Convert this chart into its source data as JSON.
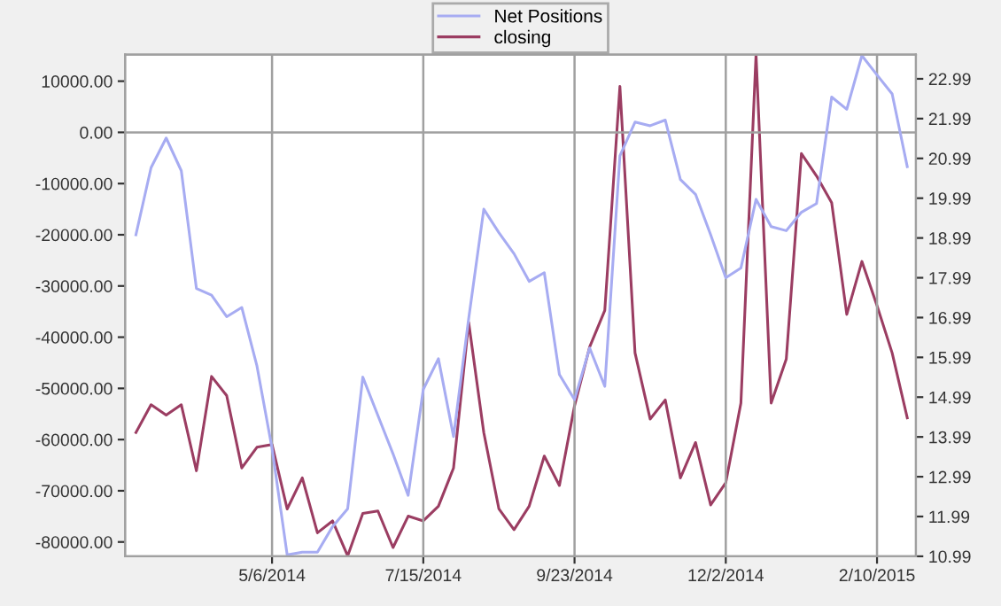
{
  "chart_data": {
    "type": "line",
    "x": [
      "2014-03-04",
      "2014-03-11",
      "2014-03-18",
      "2014-03-25",
      "2014-04-01",
      "2014-04-08",
      "2014-04-15",
      "2014-04-22",
      "2014-04-29",
      "2014-05-06",
      "2014-05-13",
      "2014-05-20",
      "2014-05-27",
      "2014-06-03",
      "2014-06-10",
      "2014-06-17",
      "2014-06-24",
      "2014-07-01",
      "2014-07-08",
      "2014-07-15",
      "2014-07-22",
      "2014-07-29",
      "2014-08-05",
      "2014-08-12",
      "2014-08-19",
      "2014-08-26",
      "2014-09-02",
      "2014-09-09",
      "2014-09-16",
      "2014-09-23",
      "2014-09-30",
      "2014-10-07",
      "2014-10-14",
      "2014-10-21",
      "2014-10-28",
      "2014-11-04",
      "2014-11-11",
      "2014-11-18",
      "2014-11-25",
      "2014-12-02",
      "2014-12-09",
      "2014-12-16",
      "2014-12-23",
      "2014-12-30",
      "2015-01-06",
      "2015-01-13",
      "2015-01-20",
      "2015-01-27",
      "2015-02-03",
      "2015-02-10",
      "2015-02-17",
      "2015-02-24"
    ],
    "series": [
      {
        "name": "Net Positions",
        "color": "#a7acf2",
        "values": [
          -20000,
          -6900,
          -1100,
          -7500,
          -30500,
          -31800,
          -36000,
          -34200,
          -45600,
          -61700,
          -82500,
          -82000,
          -82000,
          -77000,
          -73500,
          -47800,
          -55300,
          -62800,
          -70900,
          -50200,
          -44200,
          -59400,
          -36400,
          -15000,
          -19600,
          -23700,
          -29100,
          -27400,
          -47300,
          -52200,
          -42100,
          -49600,
          -4600,
          2000,
          1300,
          2400,
          -9200,
          -12100,
          -20000,
          -28400,
          -26500,
          -13100,
          -18400,
          -19200,
          -15600,
          -13900,
          6900,
          4500,
          15000,
          11200,
          7500,
          -6700
        ]
      },
      {
        "name": "closing",
        "color": "#9b3d62",
        "axis": "y2",
        "values": [
          14.1,
          14.8,
          14.54,
          14.8,
          13.14,
          15.51,
          15.03,
          13.21,
          13.73,
          13.8,
          12.18,
          12.96,
          11.58,
          11.88,
          11.0,
          12.07,
          12.13,
          11.21,
          12.0,
          11.88,
          12.25,
          13.21,
          16.87,
          14.1,
          12.18,
          11.66,
          12.25,
          13.51,
          12.77,
          14.77,
          16.25,
          17.17,
          22.8,
          16.1,
          14.44,
          14.92,
          12.96,
          13.85,
          12.28,
          12.84,
          14.84,
          23.6,
          14.84,
          15.95,
          21.11,
          20.55,
          19.88,
          17.07,
          18.4,
          17.29,
          16.1,
          14.47
        ]
      }
    ],
    "xlim": [
      "2014-02-27",
      "2015-02-28"
    ],
    "xticks": [
      {
        "value": "2014-05-06",
        "label": "5/6/2014"
      },
      {
        "value": "2014-07-15",
        "label": "7/15/2014"
      },
      {
        "value": "2014-09-23",
        "label": "9/23/2014"
      },
      {
        "value": "2014-12-02",
        "label": "12/2/2014"
      },
      {
        "value": "2015-02-10",
        "label": "2/10/2015"
      }
    ],
    "ylim": [
      -82800,
      15200
    ],
    "yticks": [
      {
        "value": -80000,
        "label": "-80000.00"
      },
      {
        "value": -70000,
        "label": "-70000.00"
      },
      {
        "value": -60000,
        "label": "-60000.00"
      },
      {
        "value": -50000,
        "label": "-50000.00"
      },
      {
        "value": -40000,
        "label": "-40000.00"
      },
      {
        "value": -30000,
        "label": "-30000.00"
      },
      {
        "value": -20000,
        "label": "-20000.00"
      },
      {
        "value": -10000,
        "label": "-10000.00"
      },
      {
        "value": 0,
        "label": "0.00"
      },
      {
        "value": 10000,
        "label": "10000.00"
      }
    ],
    "y2lim": [
      10.99,
      23.6
    ],
    "y2ticks": [
      10.99,
      11.99,
      12.99,
      13.99,
      14.99,
      15.99,
      16.99,
      17.99,
      18.99,
      19.99,
      20.99,
      21.99,
      22.99
    ],
    "ref_lines": [
      {
        "axis": "y",
        "value": 0,
        "color": "#a0a0a0"
      }
    ],
    "grid": "x",
    "legend": "top"
  }
}
